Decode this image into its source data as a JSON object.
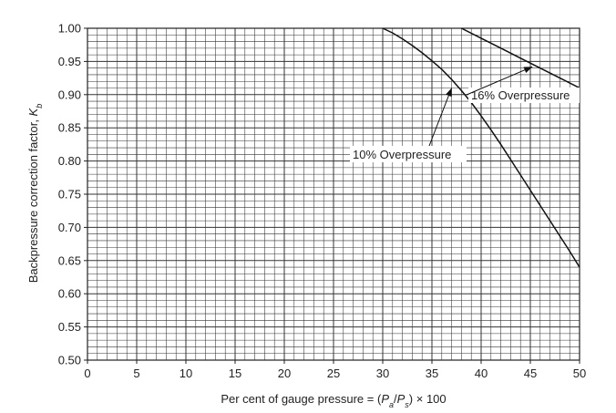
{
  "chart_data": {
    "type": "line",
    "title": "",
    "xlabel": {
      "prefix": "Per cent of gauge pressure = (",
      "var1": "P",
      "sub1": "a",
      "slash": "/",
      "var2": "P",
      "sub2": "s",
      "suffix": ") × 100"
    },
    "ylabel": {
      "prefix": "Backpressure correction factor, ",
      "var": "K",
      "sub": "b"
    },
    "xlim": [
      0,
      50
    ],
    "ylim": [
      0.5,
      1.0
    ],
    "x_ticks": [
      "0",
      "5",
      "10",
      "15",
      "20",
      "25",
      "30",
      "35",
      "40",
      "45",
      "50"
    ],
    "y_ticks": [
      "0.50",
      "0.55",
      "0.60",
      "0.65",
      "0.70",
      "0.75",
      "0.80",
      "0.85",
      "0.90",
      "0.95",
      "1.00"
    ],
    "grid": true,
    "series": [
      {
        "name": "10% Overpressure",
        "x": [
          30,
          31,
          32,
          33,
          34,
          35,
          36,
          37,
          38,
          39,
          40,
          41,
          42,
          43,
          44,
          45,
          46,
          47,
          48,
          49,
          50
        ],
        "y": [
          1.0,
          0.993,
          0.984,
          0.974,
          0.963,
          0.951,
          0.938,
          0.923,
          0.906,
          0.888,
          0.868,
          0.847,
          0.825,
          0.802,
          0.779,
          0.756,
          0.733,
          0.71,
          0.687,
          0.664,
          0.64
        ]
      },
      {
        "name": "16% Overpressure",
        "x": [
          38,
          40,
          42,
          44,
          46,
          48,
          50
        ],
        "y": [
          1.0,
          0.985,
          0.97,
          0.955,
          0.94,
          0.925,
          0.91
        ]
      }
    ],
    "annotations": [
      {
        "text": "16% Overpressure",
        "arrow_to": [
          45.2,
          0.942
        ]
      },
      {
        "text": "10% Overpressure",
        "arrow_to": [
          37.0,
          0.91
        ]
      }
    ]
  }
}
